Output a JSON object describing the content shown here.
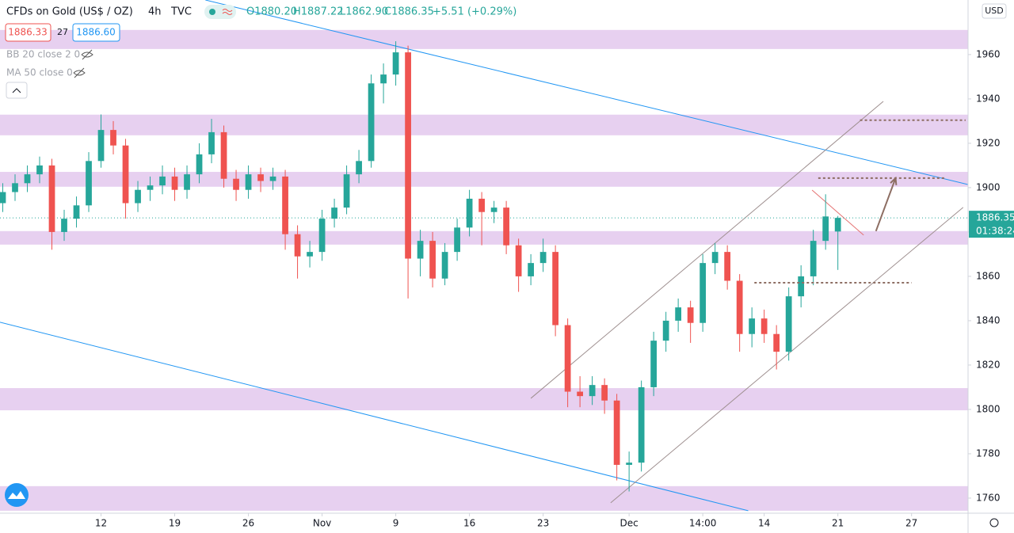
{
  "header": {
    "symbol": "CFDs on Gold (US$ / OZ)",
    "interval": "4h",
    "source": "TVC",
    "open": "O1880.20",
    "high": "H1887.22",
    "low": "L1862.90",
    "close": "C1886.35",
    "change": "+5.51 (+0.29%)",
    "bid": "1886.33",
    "spread": "27",
    "ask": "1886.60",
    "indicators": [
      "BB 20 close 2 0",
      "MA 50 close 0"
    ]
  },
  "axis_panel": {
    "currency": "USD",
    "price": "1886.35",
    "countdown": "01:38:24"
  },
  "chart_data": {
    "type": "candlestick",
    "up_color": "#26a69a",
    "down_color": "#ef5350",
    "open": [
      1893,
      1898,
      1902,
      1906,
      1910,
      1880,
      1886,
      1892,
      1912,
      1926,
      1919,
      1893,
      1899,
      1901,
      1905,
      1899,
      1906,
      1915,
      1925,
      1904,
      1899,
      1906,
      1903,
      1905,
      1879,
      1869,
      1871,
      1886,
      1891,
      1906,
      1912,
      1947,
      1951,
      1961,
      1868,
      1876,
      1859,
      1871,
      1882,
      1895,
      1889,
      1891,
      1874,
      1860,
      1866,
      1871,
      1838,
      1808,
      1806,
      1811,
      1804,
      1775,
      1776,
      1810,
      1831,
      1840,
      1846,
      1839,
      1866,
      1871,
      1858,
      1834,
      1841,
      1834,
      1826,
      1851,
      1860,
      1876,
      1880.2
    ],
    "high": [
      1902,
      1906,
      1910,
      1914,
      1913,
      1890,
      1896,
      1916,
      1933,
      1930,
      1922,
      1903,
      1905,
      1910,
      1909,
      1910,
      1920,
      1931,
      1928,
      1908,
      1910,
      1909,
      1909,
      1908,
      1883,
      1876,
      1890,
      1895,
      1910,
      1917,
      1951,
      1956,
      1966,
      1964,
      1881,
      1880,
      1875,
      1886,
      1899,
      1898,
      1894,
      1894,
      1877,
      1870,
      1877,
      1874,
      1841,
      1815,
      1815,
      1814,
      1807,
      1781,
      1813,
      1835,
      1844,
      1850,
      1849,
      1870,
      1875,
      1874,
      1861,
      1846,
      1845,
      1838,
      1855,
      1865,
      1881,
      1897,
      1887.22
    ],
    "low": [
      1889,
      1894,
      1898,
      1902,
      1872,
      1876,
      1882,
      1889,
      1909,
      1915,
      1886,
      1889,
      1894,
      1897,
      1894,
      1895,
      1902,
      1911,
      1900,
      1894,
      1895,
      1898,
      1899,
      1872,
      1859,
      1864,
      1867,
      1882,
      1888,
      1902,
      1909,
      1938,
      1946,
      1850,
      1860,
      1855,
      1856,
      1867,
      1878,
      1874,
      1884,
      1870,
      1853,
      1856,
      1862,
      1833,
      1801,
      1801,
      1802,
      1798,
      1768,
      1763,
      1772,
      1806,
      1826,
      1835,
      1830,
      1835,
      1861,
      1854,
      1826,
      1828,
      1830,
      1818,
      1822,
      1846,
      1856,
      1872,
      1862.9
    ],
    "close": [
      1898,
      1902,
      1906,
      1910,
      1880,
      1886,
      1892,
      1912,
      1926,
      1919,
      1893,
      1899,
      1901,
      1905,
      1899,
      1906,
      1915,
      1925,
      1904,
      1899,
      1906,
      1903,
      1905,
      1879,
      1869,
      1871,
      1886,
      1891,
      1906,
      1912,
      1947,
      1951,
      1961,
      1868,
      1876,
      1859,
      1871,
      1882,
      1895,
      1889,
      1891,
      1874,
      1860,
      1866,
      1871,
      1838,
      1808,
      1806,
      1811,
      1804,
      1775,
      1776,
      1810,
      1831,
      1840,
      1846,
      1839,
      1866,
      1871,
      1858,
      1834,
      1841,
      1834,
      1826,
      1851,
      1860,
      1876,
      1887,
      1886.35
    ],
    "xlim": [
      -0.226,
      78.6
    ],
    "xticks": [
      {
        "value": 8,
        "label": "12"
      },
      {
        "value": 14,
        "label": "19"
      },
      {
        "value": 20,
        "label": "26"
      },
      {
        "value": 26,
        "label": "Nov"
      },
      {
        "value": 32,
        "label": "9"
      },
      {
        "value": 38,
        "label": "16"
      },
      {
        "value": 44,
        "label": "23"
      },
      {
        "value": 51,
        "label": "Dec"
      },
      {
        "value": 57,
        "label": "14:00"
      },
      {
        "value": 62,
        "label": "14"
      },
      {
        "value": 68,
        "label": "21"
      },
      {
        "value": 74,
        "label": "27"
      }
    ],
    "ylim": [
      1753.2,
      1984.6
    ],
    "yticks": [
      1760,
      1780,
      1800,
      1820,
      1840,
      1860,
      1880,
      1900,
      1920,
      1940,
      1960
    ],
    "last_price": 1886.35,
    "zones": [
      [
        1962.5,
        1971.1
      ],
      [
        1923.6,
        1932.9
      ],
      [
        1900.4,
        1907.1
      ],
      [
        1874.3,
        1880.4
      ],
      [
        1799.6,
        1809.6
      ],
      [
        1754.3,
        1765.4
      ]
    ],
    "zone_color": "#e1c4ec",
    "lines": [
      {
        "color": "#2196f3",
        "x": [
          16.5,
          78.6
        ],
        "y": [
          1984.6,
          1901.4
        ]
      },
      {
        "color": "#2196f3",
        "x": [
          -0.23,
          60.7
        ],
        "y": [
          1839.3,
          1754.3
        ]
      },
      {
        "color": "#9e8f8f",
        "x": [
          43.0,
          71.7
        ],
        "y": [
          1805,
          1938.9
        ]
      },
      {
        "color": "#9e8f8f",
        "x": [
          49.5,
          78.2
        ],
        "y": [
          1757.9,
          1891.1
        ]
      },
      {
        "color": "#e57373",
        "x": [
          65.9,
          70.1
        ],
        "y": [
          1898.9,
          1878.6
        ]
      }
    ],
    "levels": [
      {
        "x": [
          69.8,
          78.4
        ],
        "y": 1930.4
      },
      {
        "x": [
          66.4,
          76.7
        ],
        "y": 1904.3
      },
      {
        "x": [
          61.2,
          74.0
        ],
        "y": 1857.1
      }
    ],
    "level_color": "#8d6e63",
    "arrow": {
      "x": [
        71.1,
        72.7
      ],
      "y": [
        1880.4,
        1904.3
      ],
      "color": "#8d6e63"
    }
  }
}
